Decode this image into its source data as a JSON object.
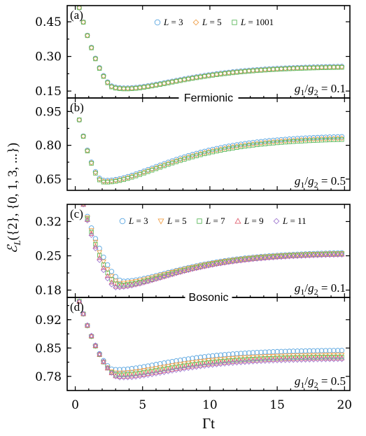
{
  "chart_data": {
    "type": "scatter",
    "ylabel": "ℰL({2}, {0, 1, 3, ...})",
    "xlabel": "Γt",
    "xlim": [
      -0.6,
      20.4
    ],
    "xticks": [
      0,
      5,
      10,
      15,
      20
    ],
    "colors": {
      "L=3": "#5aa6e0",
      "L=5": "#f0a04a",
      "L=7": "#5cb85c",
      "L=9": "#e06070",
      "L=11": "#a07ad0",
      "L=1001": "#5cb85c"
    },
    "groups": [
      {
        "label": "Fermionic",
        "panels": [
          "a",
          "b"
        ]
      },
      {
        "label": "Bosonic",
        "panels": [
          "c",
          "d"
        ]
      }
    ],
    "legends": [
      {
        "panel": "a",
        "entries": [
          {
            "marker": "circle",
            "color": "#5aa6e0",
            "text": "L = 3"
          },
          {
            "marker": "diamond",
            "color": "#f0a04a",
            "text": "L = 5"
          },
          {
            "marker": "square",
            "color": "#5cb85c",
            "text": "L = 1001"
          }
        ]
      },
      {
        "panel": "c",
        "entries": [
          {
            "marker": "circle",
            "color": "#5aa6e0",
            "text": "L = 3"
          },
          {
            "marker": "tri-down",
            "color": "#f0a04a",
            "text": "L = 5"
          },
          {
            "marker": "square",
            "color": "#5cb85c",
            "text": "L = 7"
          },
          {
            "marker": "tri-up",
            "color": "#e06070",
            "text": "L = 9"
          },
          {
            "marker": "diamond",
            "color": "#a07ad0",
            "text": "L = 11"
          }
        ]
      }
    ],
    "panels": [
      {
        "id": "a",
        "letter": "(a)",
        "ratio": "g1/g2 = 0.1",
        "ylim": [
          0.12,
          0.52
        ],
        "yticks": [
          0.15,
          0.3,
          0.45
        ],
        "ytick_labels": [
          "0.15",
          "0.30",
          "0.45"
        ],
        "series": [
          {
            "name": "L = 3",
            "marker": "circle",
            "color": "#5aa6e0",
            "min_t": 2.85,
            "min_v": 0.168,
            "a": 0.32,
            "k": 0.45,
            "inf": 0.26,
            "start": 0.5,
            "d": 0.35
          },
          {
            "name": "L = 5",
            "marker": "diamond",
            "color": "#f0a04a",
            "min_t": 2.85,
            "min_v": 0.166,
            "a": 0.32,
            "k": 0.45,
            "inf": 0.258,
            "start": 0.5,
            "d": 0.35
          },
          {
            "name": "L = 1001",
            "marker": "square",
            "color": "#5cb85c",
            "min_t": 2.85,
            "min_v": 0.164,
            "a": 0.32,
            "k": 0.45,
            "inf": 0.256,
            "start": 0.5,
            "d": 0.35
          }
        ]
      },
      {
        "id": "b",
        "letter": "(b)",
        "ratio": "g1/g2 = 0.5",
        "ylim": [
          0.6,
          1.01
        ],
        "yticks": [
          0.65,
          0.8,
          0.95
        ],
        "ytick_labels": [
          "0.65",
          "0.80",
          "0.95"
        ],
        "series": [
          {
            "name": "L = 3",
            "marker": "circle",
            "color": "#5aa6e0",
            "min_t": 2.0,
            "min_v": 0.645,
            "a": 0.3,
            "k": 0.33,
            "inf": 0.845,
            "start": 0.9,
            "d": 0.35
          },
          {
            "name": "L = 5",
            "marker": "diamond",
            "color": "#f0a04a",
            "min_t": 2.0,
            "min_v": 0.641,
            "a": 0.3,
            "k": 0.33,
            "inf": 0.838,
            "start": 0.9,
            "d": 0.35
          },
          {
            "name": "L = 1001",
            "marker": "square",
            "color": "#5cb85c",
            "min_t": 2.0,
            "min_v": 0.637,
            "a": 0.3,
            "k": 0.33,
            "inf": 0.832,
            "start": 0.9,
            "d": 0.35
          }
        ]
      },
      {
        "id": "c",
        "letter": "(c)",
        "ratio": "g1/g2 = 0.1",
        "ylim": [
          0.165,
          0.355
        ],
        "yticks": [
          0.18,
          0.25,
          0.32
        ],
        "ytick_labels": [
          "0.18",
          "0.25",
          "0.32"
        ],
        "series": [
          {
            "name": "L = 3",
            "marker": "circle",
            "color": "#5aa6e0",
            "min_t": 3.5,
            "min_v": 0.198,
            "a": 0.32,
            "k": 0.32,
            "inf": 0.258,
            "start": 0.36,
            "d": 0.55
          },
          {
            "name": "L = 5",
            "marker": "tri-down",
            "color": "#f0a04a",
            "min_t": 3.3,
            "min_v": 0.194,
            "a": 0.32,
            "k": 0.32,
            "inf": 0.257,
            "start": 0.36,
            "d": 0.55
          },
          {
            "name": "L = 7",
            "marker": "square",
            "color": "#5cb85c",
            "min_t": 3.2,
            "min_v": 0.19,
            "a": 0.32,
            "k": 0.32,
            "inf": 0.256,
            "start": 0.36,
            "d": 0.55
          },
          {
            "name": "L = 9",
            "marker": "tri-up",
            "color": "#e06070",
            "min_t": 3.1,
            "min_v": 0.187,
            "a": 0.32,
            "k": 0.32,
            "inf": 0.255,
            "start": 0.36,
            "d": 0.55
          },
          {
            "name": "L = 11",
            "marker": "diamond",
            "color": "#a07ad0",
            "min_t": 3.0,
            "min_v": 0.185,
            "a": 0.32,
            "k": 0.32,
            "inf": 0.254,
            "start": 0.36,
            "d": 0.55
          }
        ]
      },
      {
        "id": "d",
        "letter": "(d)",
        "ratio": "g1/g2 = 0.5",
        "ylim": [
          0.745,
          0.975
        ],
        "yticks": [
          0.78,
          0.85,
          0.92
        ],
        "ytick_labels": [
          "0.78",
          "0.85",
          "0.92"
        ],
        "series": [
          {
            "name": "L = 3",
            "marker": "circle",
            "color": "#5aa6e0",
            "min_t": 2.8,
            "min_v": 0.797,
            "a": 0.35,
            "k": 0.4,
            "inf": 0.845,
            "start": 0.96,
            "d": 0.35
          },
          {
            "name": "L = 5",
            "marker": "tri-down",
            "color": "#f0a04a",
            "min_t": 2.9,
            "min_v": 0.789,
            "a": 0.35,
            "k": 0.4,
            "inf": 0.834,
            "start": 0.96,
            "d": 0.35
          },
          {
            "name": "L = 7",
            "marker": "square",
            "color": "#5cb85c",
            "min_t": 3.0,
            "min_v": 0.784,
            "a": 0.35,
            "k": 0.4,
            "inf": 0.829,
            "start": 0.96,
            "d": 0.35
          },
          {
            "name": "L = 9",
            "marker": "tri-up",
            "color": "#e06070",
            "min_t": 3.1,
            "min_v": 0.78,
            "a": 0.35,
            "k": 0.4,
            "inf": 0.826,
            "start": 0.96,
            "d": 0.35
          },
          {
            "name": "L = 11",
            "marker": "diamond",
            "color": "#a07ad0",
            "min_t": 3.2,
            "min_v": 0.777,
            "a": 0.35,
            "k": 0.4,
            "inf": 0.823,
            "start": 0.96,
            "d": 0.35
          }
        ]
      }
    ]
  }
}
